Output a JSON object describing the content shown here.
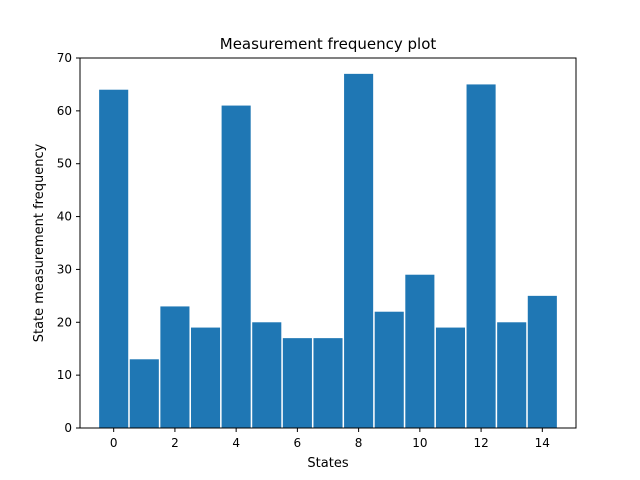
{
  "chart_data": {
    "type": "bar",
    "title": "Measurement frequency plot",
    "xlabel": "States",
    "ylabel": "State measurement frequency",
    "x": [
      0,
      1,
      2,
      3,
      4,
      5,
      6,
      7,
      8,
      9,
      10,
      11,
      12,
      13,
      14
    ],
    "values": [
      64,
      13,
      23,
      19,
      61,
      20,
      17,
      17,
      67,
      22,
      29,
      19,
      65,
      20,
      25
    ],
    "xlim": [
      -1.1,
      15.1
    ],
    "ylim": [
      0,
      70
    ],
    "xticks": [
      0,
      2,
      4,
      6,
      8,
      10,
      12,
      14
    ],
    "yticks": [
      0,
      10,
      20,
      30,
      40,
      50,
      60,
      70
    ],
    "bar_color": "#1f77b4",
    "grid": false,
    "legend": false
  }
}
